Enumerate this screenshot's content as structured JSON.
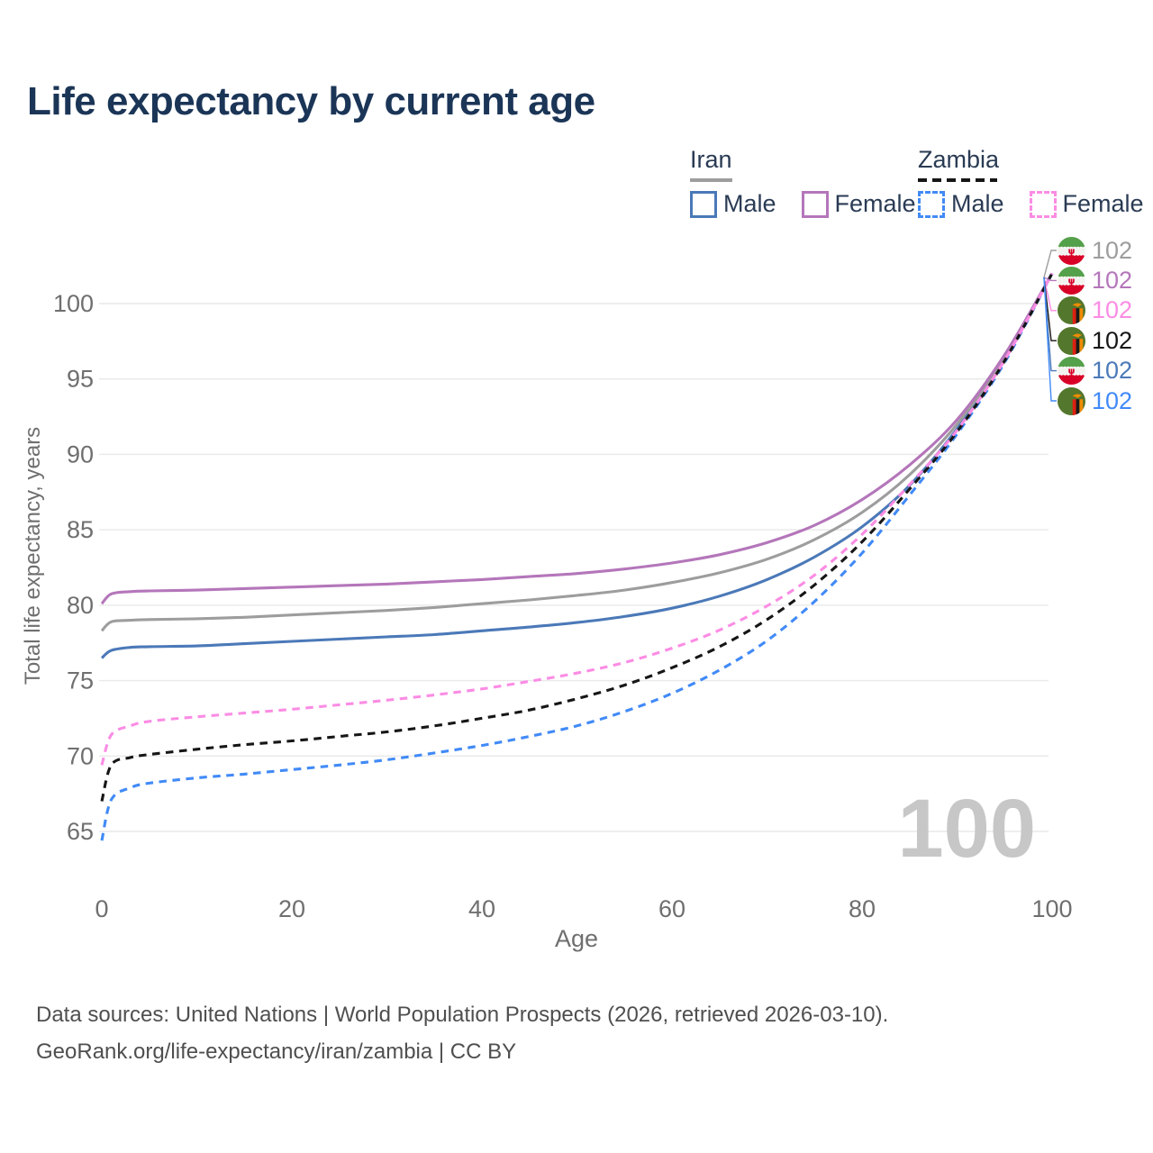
{
  "header": {
    "title": "Life expectancy by current age"
  },
  "legend": {
    "groups": [
      {
        "country": "Iran",
        "line_style": "solid",
        "line_color": "#9d9d9d",
        "items": [
          {
            "label": "Male",
            "color": "#4b79b8",
            "dashed": false
          },
          {
            "label": "Female",
            "color": "#b476ba",
            "dashed": false
          }
        ]
      },
      {
        "country": "Zambia",
        "line_style": "dashed",
        "line_color": "#161616",
        "items": [
          {
            "label": "Male",
            "color": "#418af7",
            "dashed": true
          },
          {
            "label": "Female",
            "color": "#fb8ce4",
            "dashed": true
          }
        ]
      }
    ]
  },
  "chart_data": {
    "type": "line",
    "title": "Life expectancy by current age",
    "xlabel": "Age",
    "ylabel": "Total life expectancy, years",
    "x_ticks": [
      0,
      20,
      40,
      60,
      80,
      100
    ],
    "y_ticks": [
      65,
      70,
      75,
      80,
      85,
      90,
      95,
      100
    ],
    "xlim": [
      0,
      100
    ],
    "ylim": [
      63.5,
      103
    ],
    "grid": "horizontal",
    "legend_position": "top-right",
    "age_watermark": "100",
    "x": [
      0,
      1,
      3,
      5,
      10,
      15,
      20,
      25,
      30,
      35,
      40,
      45,
      50,
      55,
      60,
      65,
      70,
      75,
      80,
      85,
      90,
      95,
      100
    ],
    "series": [
      {
        "name": "Iran Male",
        "country": "Iran",
        "sex": "Male",
        "color": "#4b79b8",
        "dash": "solid",
        "values": [
          76.5,
          77.0,
          77.2,
          77.25,
          77.3,
          77.45,
          77.6,
          77.75,
          77.9,
          78.05,
          78.3,
          78.55,
          78.85,
          79.25,
          79.8,
          80.6,
          81.7,
          83.2,
          85.2,
          87.95,
          91.7,
          96.3,
          102
        ]
      },
      {
        "name": "Iran Total",
        "country": "Iran",
        "sex": "Both",
        "color": "#9d9d9d",
        "dash": "solid",
        "values": [
          78.3,
          78.9,
          79.0,
          79.05,
          79.1,
          79.2,
          79.35,
          79.5,
          79.65,
          79.85,
          80.1,
          80.35,
          80.65,
          81.0,
          81.5,
          82.15,
          83.05,
          84.35,
          86.15,
          88.65,
          92.0,
          96.45,
          102
        ]
      },
      {
        "name": "Iran Female",
        "country": "Iran",
        "sex": "Female",
        "color": "#b476ba",
        "dash": "solid",
        "values": [
          80.1,
          80.75,
          80.9,
          80.95,
          81.0,
          81.1,
          81.2,
          81.3,
          81.4,
          81.55,
          81.7,
          81.9,
          82.1,
          82.4,
          82.8,
          83.35,
          84.15,
          85.3,
          87.0,
          89.3,
          92.3,
          96.6,
          102
        ]
      },
      {
        "name": "Zambia Male",
        "country": "Zambia",
        "sex": "Male",
        "color": "#418af7",
        "dash": "dashed",
        "values": [
          64.4,
          67.1,
          67.9,
          68.2,
          68.55,
          68.8,
          69.1,
          69.4,
          69.75,
          70.2,
          70.7,
          71.3,
          72.0,
          72.95,
          74.15,
          75.7,
          77.65,
          80.25,
          83.45,
          87.3,
          91.35,
          96.1,
          102
        ]
      },
      {
        "name": "Zambia Total",
        "country": "Zambia",
        "sex": "Both",
        "color": "#161616",
        "dash": "dashed",
        "values": [
          67.0,
          69.4,
          69.9,
          70.1,
          70.45,
          70.75,
          71.0,
          71.3,
          71.6,
          72.0,
          72.5,
          73.05,
          73.8,
          74.7,
          75.85,
          77.25,
          79.05,
          81.35,
          84.2,
          87.7,
          91.5,
          96.2,
          102
        ]
      },
      {
        "name": "Zambia Female",
        "country": "Zambia",
        "sex": "Female",
        "color": "#fb8ce4",
        "dash": "dashed",
        "values": [
          69.4,
          71.4,
          72.0,
          72.3,
          72.6,
          72.85,
          73.1,
          73.4,
          73.7,
          74.05,
          74.45,
          74.95,
          75.5,
          76.2,
          77.15,
          78.35,
          79.95,
          82.0,
          84.7,
          88.0,
          91.6,
          96.25,
          102
        ]
      }
    ],
    "end_labels": [
      {
        "flag": "iran",
        "series": "Iran Total",
        "value": "102",
        "color": "#9d9d9d"
      },
      {
        "flag": "iran",
        "series": "Iran Female",
        "value": "102",
        "color": "#b476ba"
      },
      {
        "flag": "zambia",
        "series": "Zambia Female",
        "value": "102",
        "color": "#fb8ce4"
      },
      {
        "flag": "zambia",
        "series": "Zambia Total",
        "value": "102",
        "color": "#161616"
      },
      {
        "flag": "iran",
        "series": "Iran Male",
        "value": "102",
        "color": "#4b79b8"
      },
      {
        "flag": "zambia",
        "series": "Zambia Male",
        "value": "102",
        "color": "#418af7"
      }
    ]
  },
  "footer": {
    "line1": "Data sources: United Nations | World Population Prospects (2026, retrieved 2026-03-10).",
    "line2": "GeoRank.org/life-expectancy/iran/zambia | CC BY"
  }
}
